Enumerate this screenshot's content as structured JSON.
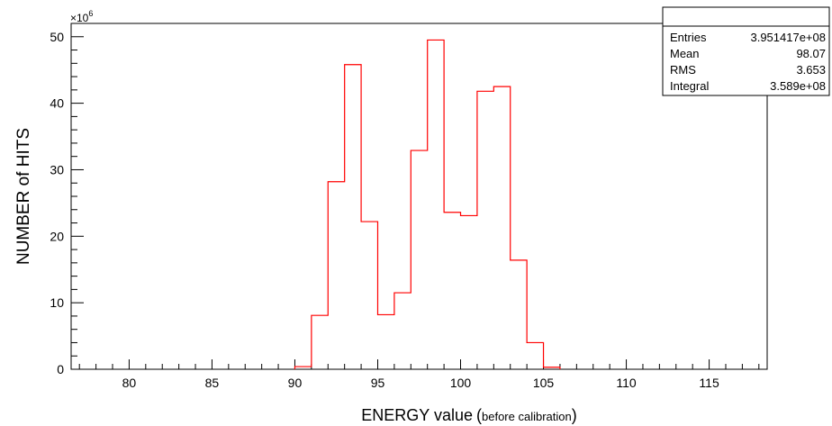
{
  "chart_data": {
    "type": "histogram",
    "title": "",
    "xlabel": "ENERGY value",
    "xlabel_note": "before calibration",
    "ylabel": "NUMBER of HITS",
    "y_multiplier": "×10",
    "y_multiplier_exp": "6",
    "xlim": [
      76.5,
      118.5
    ],
    "ylim": [
      0,
      52
    ],
    "x_ticks": [
      "80",
      "85",
      "90",
      "95",
      "100",
      "105",
      "110",
      "115"
    ],
    "y_ticks": [
      "0",
      "10",
      "20",
      "30",
      "40",
      "50"
    ],
    "bin_width": 1,
    "bins": [
      {
        "x": 90,
        "value": 0.4
      },
      {
        "x": 91,
        "value": 8.1
      },
      {
        "x": 92,
        "value": 28.2
      },
      {
        "x": 93,
        "value": 45.8
      },
      {
        "x": 94,
        "value": 22.2
      },
      {
        "x": 95,
        "value": 8.2
      },
      {
        "x": 96,
        "value": 11.5
      },
      {
        "x": 97,
        "value": 32.9
      },
      {
        "x": 98,
        "value": 49.5
      },
      {
        "x": 99,
        "value": 23.6
      },
      {
        "x": 100,
        "value": 23.1
      },
      {
        "x": 101,
        "value": 41.8
      },
      {
        "x": 102,
        "value": 42.5
      },
      {
        "x": 103,
        "value": 16.4
      },
      {
        "x": 104,
        "value": 4.0
      },
      {
        "x": 105,
        "value": 0.3
      }
    ],
    "line_color": "#ff0000",
    "grid": false,
    "stats_box": {
      "rows": [
        {
          "label": "Entries",
          "value": "3.951417e+08"
        },
        {
          "label": "Mean",
          "value": "98.07"
        },
        {
          "label": "RMS",
          "value": "3.653"
        },
        {
          "label": "Integral",
          "value": "3.589e+08"
        }
      ],
      "placement": "top-right"
    }
  }
}
